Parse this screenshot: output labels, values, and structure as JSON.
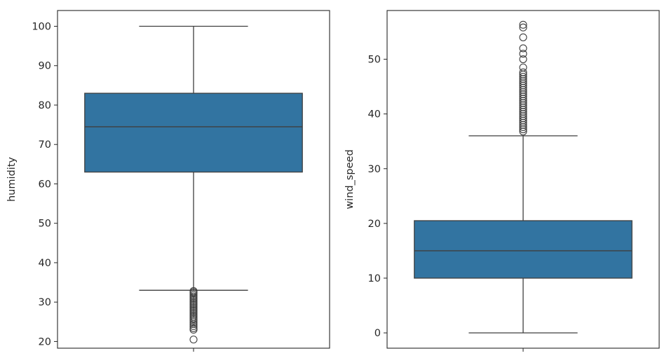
{
  "chart_data": [
    {
      "type": "boxplot",
      "ylabel": "humidity",
      "xlabel": "",
      "ylim": [
        18.3,
        104.0
      ],
      "yticks": [
        20,
        30,
        40,
        50,
        60,
        70,
        80,
        90,
        100
      ],
      "grid": false,
      "box": {
        "whisker_low": 33,
        "q1": 63,
        "median": 74.5,
        "q3": 83,
        "whisker_high": 100
      },
      "outliers": [
        32.8,
        32.5,
        32.2,
        31.8,
        31.4,
        31.0,
        30.6,
        30.2,
        29.8,
        29.4,
        29.0,
        28.6,
        28.2,
        27.8,
        27.4,
        27.0,
        26.6,
        26.2,
        25.8,
        25.4,
        24.9,
        24.4,
        23.9,
        23.4,
        23.0,
        20.5
      ],
      "color": "#3274a1"
    },
    {
      "type": "boxplot",
      "ylabel": "wind_speed",
      "xlabel": "",
      "ylim": [
        -2.8,
        58.9
      ],
      "yticks": [
        0,
        10,
        20,
        30,
        40,
        50
      ],
      "grid": false,
      "box": {
        "whisker_low": 0,
        "q1": 10,
        "median": 15,
        "q3": 20.5,
        "whisker_high": 36
      },
      "outliers": [
        36.8,
        37.2,
        37.6,
        38.0,
        38.4,
        38.8,
        39.2,
        39.6,
        40.0,
        40.4,
        40.8,
        41.2,
        41.6,
        42.0,
        42.4,
        42.8,
        43.2,
        43.6,
        44.0,
        44.4,
        44.8,
        45.2,
        45.6,
        46.0,
        46.4,
        46.8,
        47.2,
        47.6,
        48.5,
        50.0,
        51.0,
        52.0,
        54.0,
        55.8,
        56.3
      ],
      "color": "#3274a1"
    }
  ]
}
